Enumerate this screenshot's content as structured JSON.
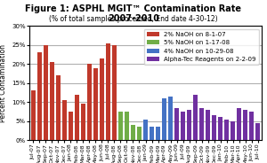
{
  "chart_data": {
    "type": "bar",
    "title": "Figure 1: ASPHL MGIT™ Contamination Rate 2007-2010",
    "subtitle": "(% of total samples processed, End date 4-30-12)",
    "ylabel": "Percent Contamination",
    "categories": [
      "Jul-07",
      "Aug-07",
      "Sep-07",
      "Oct-07",
      "Nov-07",
      "Dec-07",
      "Jan-08",
      "Feb-08",
      "Mar-08",
      "Apr-08",
      "May-08",
      "Jun-08",
      "Jul-08",
      "Aug-08",
      "Sep-08",
      "Oct-08",
      "Nov-08",
      "Dec-08",
      "Jan-09",
      "Feb-09",
      "Mar-09",
      "Apr-09",
      "May-09",
      "Jun-09",
      "Jul-09",
      "Aug-09",
      "Sep-09",
      "Oct-09",
      "Nov-09",
      "Dec-09",
      "Jan-10",
      "Feb-10",
      "Mar-10",
      "Apr-10",
      "May-10",
      "Jun-10",
      "Jul-10"
    ],
    "series": [
      {
        "name": "2% NaOH on 8-1-07",
        "color": "#c0392b",
        "values": [
          13.0,
          23.0,
          25.0,
          20.5,
          17.0,
          10.5,
          7.5,
          12.0,
          9.5,
          20.0,
          19.0,
          21.5,
          25.5,
          25.0,
          null,
          null,
          null,
          null,
          null,
          null,
          null,
          null,
          null,
          null,
          null,
          null,
          null,
          null,
          null,
          null,
          null,
          null,
          null,
          null,
          null,
          null,
          null
        ]
      },
      {
        "name": "5% NaOH on 1-17-08",
        "color": "#70ad47",
        "values": [
          null,
          null,
          null,
          null,
          null,
          null,
          null,
          null,
          null,
          null,
          null,
          null,
          null,
          null,
          7.5,
          7.5,
          4.0,
          3.5,
          null,
          null,
          null,
          null,
          null,
          null,
          null,
          null,
          null,
          null,
          null,
          null,
          null,
          null,
          null,
          null,
          null,
          null,
          null
        ]
      },
      {
        "name": "4% NaOH on 10-29-08",
        "color": "#4472c4",
        "values": [
          null,
          null,
          null,
          null,
          null,
          null,
          null,
          null,
          null,
          null,
          null,
          null,
          null,
          null,
          null,
          null,
          null,
          null,
          5.5,
          3.5,
          3.5,
          11.0,
          11.5,
          null,
          null,
          null,
          null,
          null,
          null,
          null,
          null,
          null,
          null,
          null,
          null,
          null,
          null
        ]
      },
      {
        "name": "Alpha-Tec Reagents on 2-2-09",
        "color": "#7030a0",
        "values": [
          null,
          null,
          null,
          null,
          null,
          null,
          null,
          null,
          null,
          null,
          null,
          null,
          null,
          null,
          null,
          null,
          null,
          null,
          null,
          null,
          null,
          null,
          null,
          8.5,
          7.5,
          8.0,
          12.0,
          8.5,
          8.0,
          6.5,
          6.0,
          5.5,
          5.0,
          8.5,
          8.0,
          7.5,
          4.5
        ]
      }
    ],
    "ylim": [
      0,
      30
    ],
    "yticks": [
      {
        "value": 0,
        "label": "0%"
      },
      {
        "value": 5,
        "label": "5%"
      },
      {
        "value": 10,
        "label": "10%"
      },
      {
        "value": 15,
        "label": "15%"
      },
      {
        "value": 20,
        "label": "20%"
      },
      {
        "value": 25,
        "label": "25%"
      },
      {
        "value": 30,
        "label": "30%"
      }
    ],
    "grid": true,
    "legend": "upper right"
  }
}
